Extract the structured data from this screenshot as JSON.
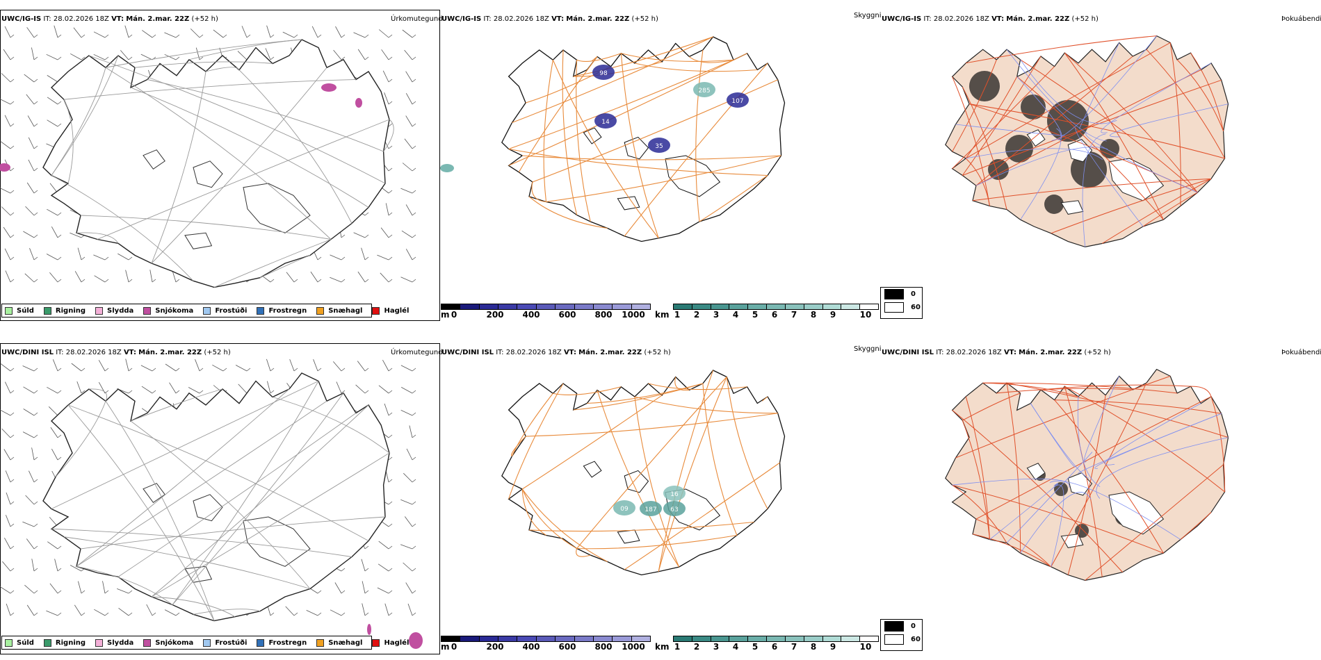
{
  "rows": [
    {
      "id": "igis",
      "panels": [
        {
          "model": "UWC/IG-IS",
          "it_label": "IT:",
          "it_value": "28.02.2026 18Z",
          "vt_label": "VT:",
          "vt_value": "Mán. 2.mar. 22Z",
          "lead": "(+52 h)",
          "title": "Úrkomutegund"
        },
        {
          "model": "UWC/IG-IS",
          "it_label": "IT:",
          "it_value": "28.02.2026 18Z",
          "vt_label": "VT:",
          "vt_value": "Mán. 2.mar. 22Z",
          "lead": "(+52 h)",
          "title": "Skyggni"
        },
        {
          "model": "UWC/IG-IS",
          "it_label": "IT:",
          "it_value": "28.02.2026 18Z",
          "vt_label": "VT:",
          "vt_value": "Mán. 2.mar. 22Z",
          "lead": "(+52 h)",
          "title": "Þokuábendi"
        }
      ],
      "visibility_labels": [
        "98",
        "14",
        "35",
        "285",
        "107"
      ]
    },
    {
      "id": "dini",
      "panels": [
        {
          "model": "UWC/DINI ISL",
          "it_label": "IT:",
          "it_value": "28.02.2026 18Z",
          "vt_label": "VT:",
          "vt_value": "Mán. 2.mar. 22Z",
          "lead": "(+52 h)",
          "title": "Úrkomutegund"
        },
        {
          "model": "UWC/DINI ISL",
          "it_label": "IT:",
          "it_value": "28.02.2026 18Z",
          "vt_label": "VT:",
          "vt_value": "Mán. 2.mar. 22Z",
          "lead": "(+52 h)",
          "title": "Skyggni"
        },
        {
          "model": "UWC/DINI ISL",
          "it_label": "IT:",
          "it_value": "28.02.2026 18Z",
          "vt_label": "VT:",
          "vt_value": "Mán. 2.mar. 22Z",
          "lead": "(+52 h)",
          "title": "Þokuábendi"
        }
      ],
      "visibility_labels": [
        "09",
        "187",
        "16",
        "63"
      ]
    }
  ],
  "precip_legend": [
    {
      "label": "Súld",
      "color": "#a8f0a0"
    },
    {
      "label": "Rigning",
      "color": "#3a9a6a"
    },
    {
      "label": "Slydda",
      "color": "#f4b0d8"
    },
    {
      "label": "Snjókoma",
      "color": "#c04fa0"
    },
    {
      "label": "Frostúði",
      "color": "#a0c8f0"
    },
    {
      "label": "Frostregn",
      "color": "#3070b8"
    },
    {
      "label": "Snæhagl",
      "color": "#f0a020"
    },
    {
      "label": "Haglél",
      "color": "#e01010"
    }
  ],
  "height_bar": {
    "unit": "m",
    "ticks": [
      "0",
      "200",
      "400",
      "600",
      "800",
      "1000"
    ],
    "colors": [
      "#000000",
      "#1a1a7a",
      "#2a2a95",
      "#3a3aa5",
      "#4a4ab5",
      "#5a5ab8",
      "#6a6ac0",
      "#7a7ac8",
      "#8a8ad0",
      "#9a9ad8",
      "#b0b0e0"
    ]
  },
  "vis_bar": {
    "unit": "km",
    "ticks": [
      "1",
      "2",
      "3",
      "4",
      "5",
      "6",
      "7",
      "8",
      "9",
      "10"
    ],
    "colors": [
      "#2a7a74",
      "#3a8a84",
      "#4a9690",
      "#5aa29c",
      "#6aaea8",
      "#7ab8b2",
      "#8ac2bc",
      "#9acdc8",
      "#b0dcd6",
      "#cce8e4",
      "#ffffff"
    ]
  },
  "cloud_legend": [
    {
      "label": "0",
      "color": "#000000"
    },
    {
      "label": "60",
      "color": "#ffffff"
    }
  ]
}
